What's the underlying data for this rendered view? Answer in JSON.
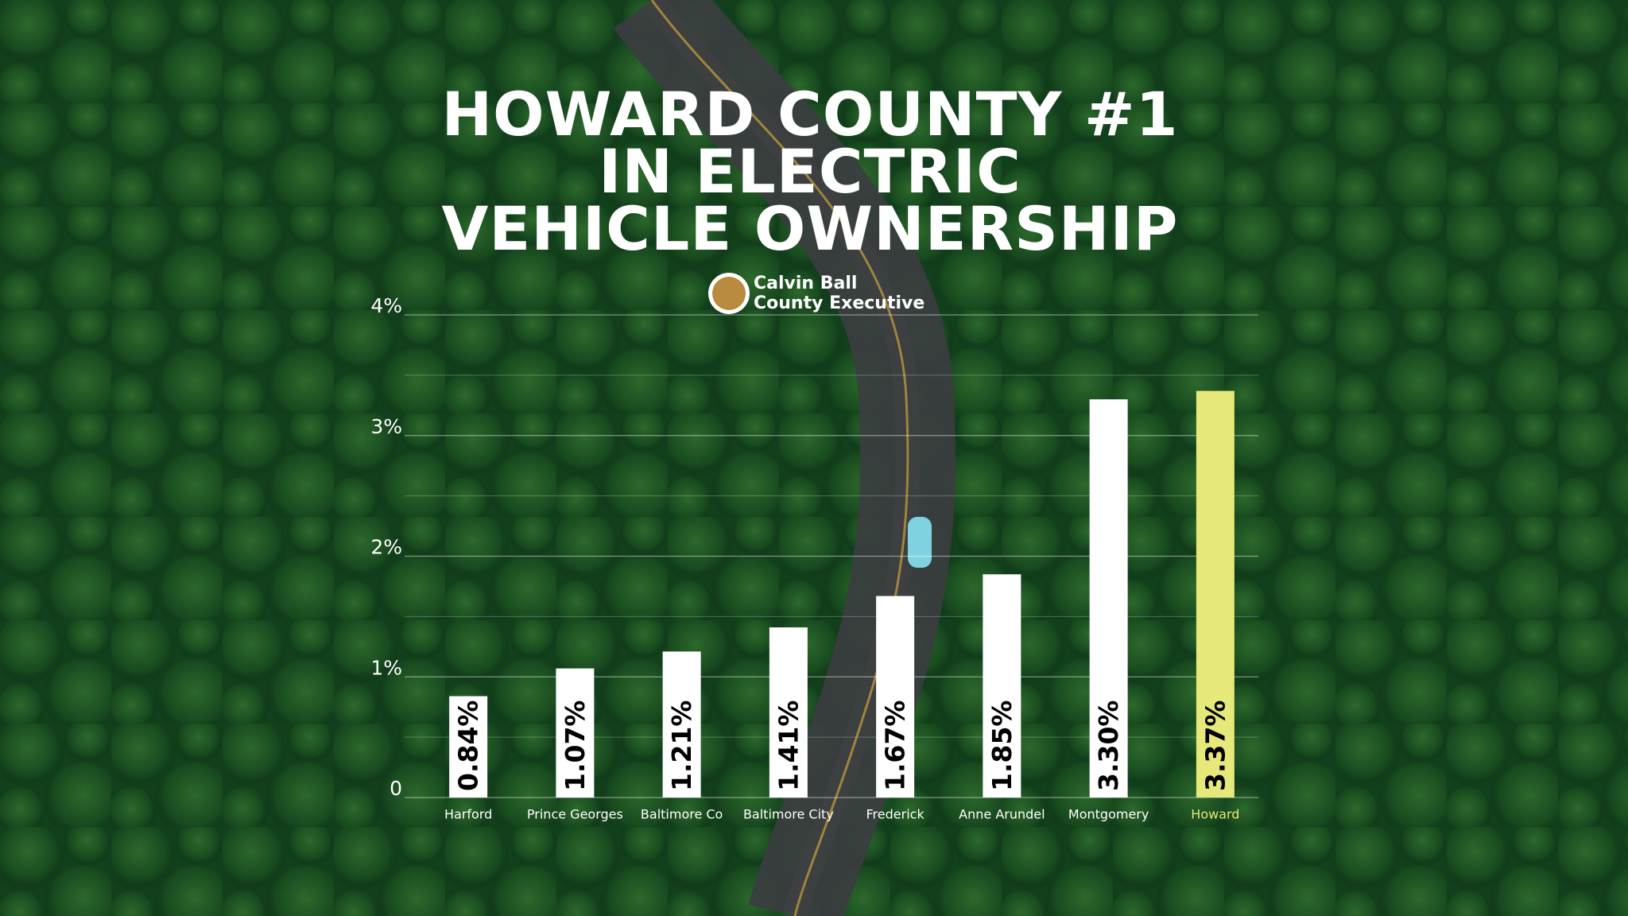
{
  "chart_data": {
    "type": "bar",
    "title_lines": [
      "HOWARD COUNTY #1",
      "IN ELECTRIC",
      "VEHICLE OWNERSHIP"
    ],
    "byline": [
      "Calvin Ball",
      "County Executive"
    ],
    "categories": [
      "Harford",
      "Prince Georges",
      "Baltimore Co",
      "Baltimore City",
      "Frederick",
      "Anne Arundel",
      "Montgomery",
      "Howard"
    ],
    "values": [
      0.84,
      1.07,
      1.21,
      1.41,
      1.67,
      1.85,
      3.3,
      3.37
    ],
    "value_labels": [
      "0.84%",
      "1.07%",
      "1.21%",
      "1.41%",
      "1.67%",
      "1.85%",
      "3.30%",
      "3.37%"
    ],
    "colors": [
      "#ffffff",
      "#ffffff",
      "#ffffff",
      "#ffffff",
      "#ffffff",
      "#ffffff",
      "#ffffff",
      "#e6e87a"
    ],
    "ylim": [
      0,
      4
    ],
    "yticks": [
      0,
      {
        "value": 1,
        "label": "1%"
      },
      {
        "value": 2,
        "label": "2%"
      },
      {
        "value": 3,
        "label": "3%"
      },
      {
        "value": 4,
        "label": "4%"
      }
    ],
    "minor_yticks": [
      0.5,
      1.5,
      2.5,
      3.5
    ],
    "grid": true
  }
}
